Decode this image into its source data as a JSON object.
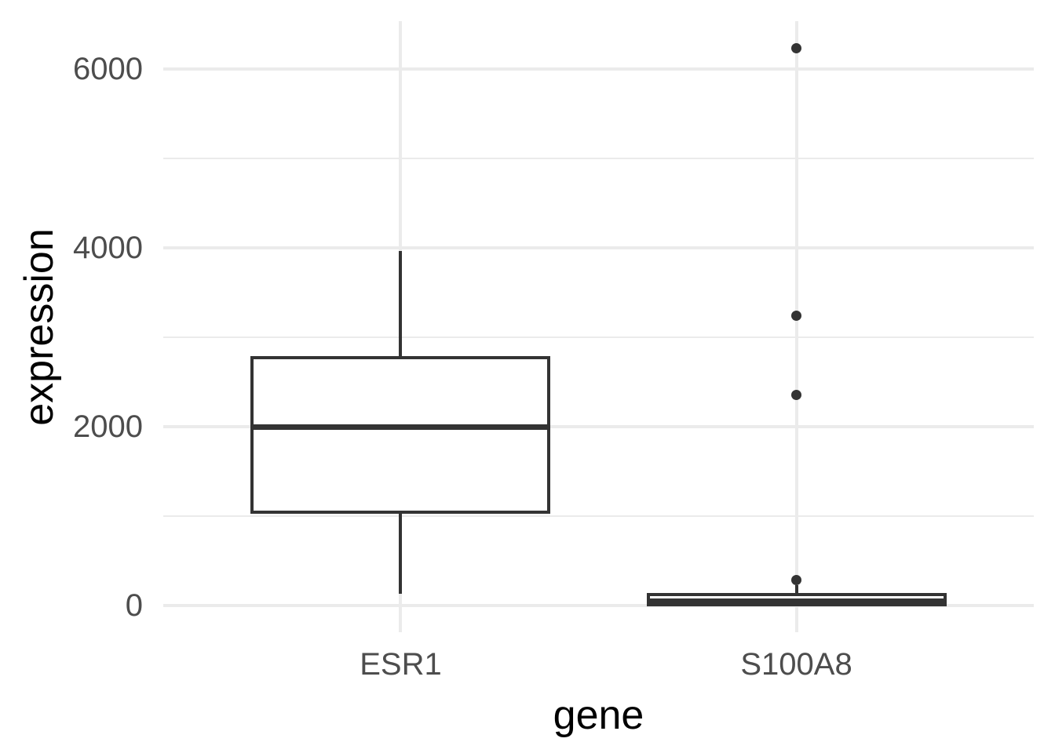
{
  "figure": {
    "background": "#ffffff"
  },
  "chart_data": {
    "type": "boxplot",
    "title": "",
    "xlabel": "gene",
    "ylabel": "expression",
    "categories": [
      "ESR1",
      "S100A8"
    ],
    "y_axis": {
      "major_ticks": [
        0,
        2000,
        4000,
        6000
      ],
      "minor_ticks": [
        1000,
        3000,
        5000
      ],
      "range": [
        -294,
        6535
      ],
      "grid": true
    },
    "legend": "none",
    "series": [
      {
        "name": "ESR1",
        "whisker_low": 135,
        "q1": 1050,
        "median": 2000,
        "q3": 2775,
        "whisker_high": 3970,
        "outliers": []
      },
      {
        "name": "S100A8",
        "whisker_low": 5,
        "q1": 13,
        "median": 48,
        "q3": 127,
        "whisker_high": 230,
        "outliers": [
          285,
          2360,
          3240,
          6230
        ]
      }
    ]
  },
  "colors": {
    "box_stroke": "#333333",
    "box_fill": "#ffffff",
    "gridline": "#ebebeb",
    "tick_label": "#4d4d4d",
    "axis_title": "#000000",
    "background": "#ffffff"
  }
}
